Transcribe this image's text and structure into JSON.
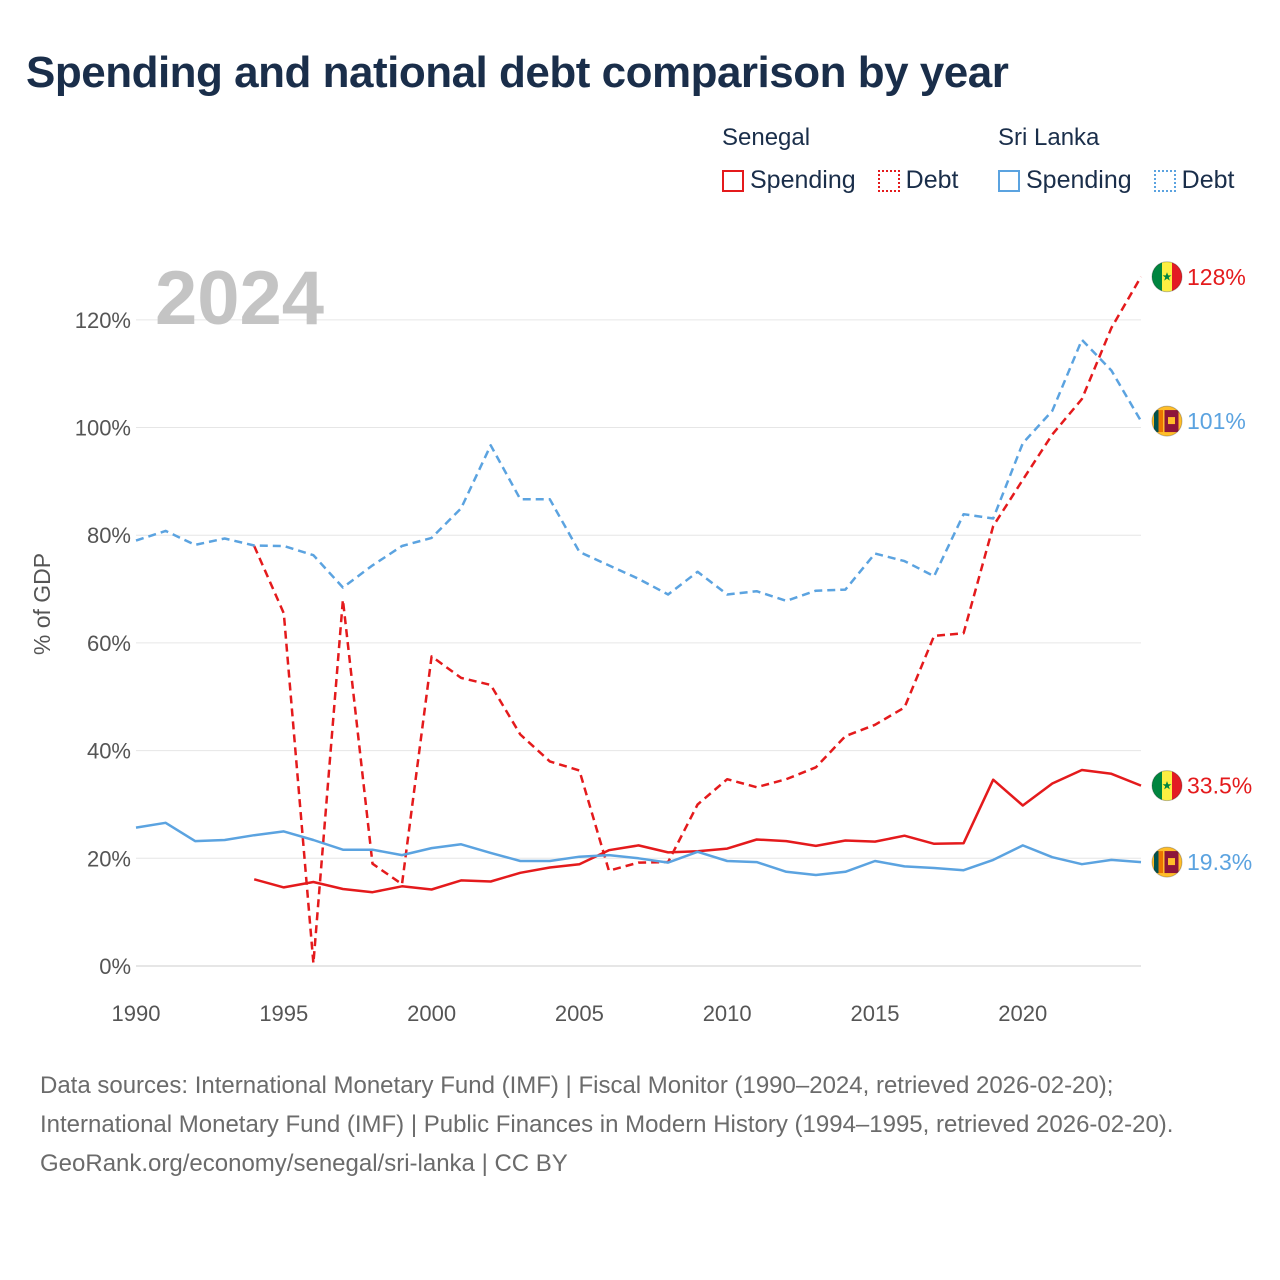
{
  "title": "Spending and national debt comparison by year",
  "legend": {
    "groups": [
      {
        "country": "Senegal",
        "color": "#e41a1c",
        "items": [
          {
            "label": "Spending",
            "style": "solid"
          },
          {
            "label": "Debt",
            "style": "dotted"
          }
        ]
      },
      {
        "country": "Sri Lanka",
        "color": "#5ba3e0",
        "items": [
          {
            "label": "Spending",
            "style": "solid"
          },
          {
            "label": "Debt",
            "style": "dotted"
          }
        ]
      }
    ]
  },
  "chart_data": {
    "type": "line",
    "year_label": "2024",
    "ylabel": "% of GDP",
    "xlim": [
      1990,
      2024
    ],
    "ylim": [
      0,
      130
    ],
    "x_ticks": [
      1990,
      1995,
      2000,
      2005,
      2010,
      2015,
      2020
    ],
    "x_tick_labels": [
      "1990",
      "1995",
      "2000",
      "2005",
      "2010",
      "2015",
      "2020"
    ],
    "y_ticks": [
      0,
      20,
      40,
      60,
      80,
      100,
      120
    ],
    "y_tick_labels": [
      "0%",
      "20%",
      "40%",
      "60%",
      "80%",
      "100%",
      "120%"
    ],
    "grid": true,
    "series": [
      {
        "name": "Senegal Spending",
        "country": "Senegal",
        "metric": "Spending",
        "color": "#e41a1c",
        "dash": "solid",
        "end_label": "33.5%",
        "flag": "senegal-flag",
        "x": [
          1994,
          1995,
          1996,
          1997,
          1998,
          1999,
          2000,
          2001,
          2002,
          2003,
          2004,
          2005,
          2006,
          2007,
          2008,
          2009,
          2010,
          2011,
          2012,
          2013,
          2014,
          2015,
          2016,
          2017,
          2018,
          2019,
          2020,
          2021,
          2022,
          2023,
          2024
        ],
        "values": [
          16.1,
          14.6,
          15.6,
          14.3,
          13.7,
          14.8,
          14.2,
          15.9,
          15.7,
          17.3,
          18.3,
          18.9,
          21.5,
          22.4,
          21.1,
          21.3,
          21.8,
          23.5,
          23.2,
          22.3,
          23.3,
          23.1,
          24.2,
          22.7,
          22.8,
          34.6,
          29.8,
          33.9,
          36.4,
          35.7,
          33.5
        ]
      },
      {
        "name": "Senegal Debt",
        "country": "Senegal",
        "metric": "Debt",
        "color": "#e41a1c",
        "dash": "dashed",
        "end_label": "128%",
        "flag": "senegal-flag",
        "x": [
          1994,
          1995,
          1996,
          1997,
          1998,
          1999,
          2000,
          2001,
          2002,
          2003,
          2004,
          2005,
          2006,
          2007,
          2008,
          2009,
          2010,
          2011,
          2012,
          2013,
          2014,
          2015,
          2016,
          2017,
          2018,
          2019,
          2020,
          2021,
          2022,
          2023,
          2024
        ],
        "values": [
          78.0,
          65.5,
          0.5,
          68.0,
          19.0,
          15.2,
          57.5,
          53.5,
          52.2,
          43.0,
          38.0,
          36.3,
          17.7,
          19.2,
          19.3,
          30.0,
          34.7,
          33.2,
          34.7,
          36.9,
          42.7,
          44.8,
          48.0,
          61.3,
          61.8,
          81.7,
          90.3,
          98.7,
          105.3,
          118.5,
          128.0
        ]
      },
      {
        "name": "Sri Lanka Spending",
        "country": "Sri Lanka",
        "metric": "Spending",
        "color": "#5ba3e0",
        "dash": "solid",
        "end_label": "19.3%",
        "flag": "sri-lanka-flag",
        "x": [
          1990,
          1991,
          1992,
          1993,
          1994,
          1995,
          1996,
          1997,
          1998,
          1999,
          2000,
          2001,
          2002,
          2003,
          2004,
          2005,
          2006,
          2007,
          2008,
          2009,
          2010,
          2011,
          2012,
          2013,
          2014,
          2015,
          2016,
          2017,
          2018,
          2019,
          2020,
          2021,
          2022,
          2023,
          2024
        ],
        "values": [
          25.7,
          26.6,
          23.2,
          23.4,
          24.3,
          25.0,
          23.4,
          21.6,
          21.6,
          20.6,
          21.9,
          22.6,
          21.0,
          19.5,
          19.5,
          20.3,
          20.6,
          20.0,
          19.2,
          21.2,
          19.5,
          19.3,
          17.5,
          16.9,
          17.5,
          19.5,
          18.5,
          18.2,
          17.8,
          19.7,
          22.4,
          20.2,
          18.9,
          19.7,
          19.3
        ]
      },
      {
        "name": "Sri Lanka Debt",
        "country": "Sri Lanka",
        "metric": "Debt",
        "color": "#5ba3e0",
        "dash": "dashed",
        "end_label": "101%",
        "flag": "sri-lanka-flag",
        "x": [
          1990,
          1991,
          1992,
          1993,
          1994,
          1995,
          1996,
          1997,
          1998,
          1999,
          2000,
          2001,
          2002,
          2003,
          2004,
          2005,
          2006,
          2007,
          2008,
          2009,
          2010,
          2011,
          2012,
          2013,
          2014,
          2015,
          2016,
          2017,
          2018,
          2019,
          2020,
          2021,
          2022,
          2023,
          2024
        ],
        "values": [
          79.0,
          80.8,
          78.2,
          79.4,
          78.1,
          78.0,
          76.3,
          70.3,
          74.4,
          78.0,
          79.5,
          85.0,
          96.7,
          86.7,
          86.7,
          76.9,
          74.4,
          71.9,
          69.0,
          73.2,
          69.0,
          69.6,
          67.8,
          69.7,
          69.9,
          76.6,
          75.2,
          72.4,
          83.9,
          83.1,
          97.1,
          103.1,
          116.3,
          110.6,
          101.2
        ]
      }
    ]
  },
  "footer": {
    "sources": "Data sources: International Monetary Fund (IMF) | Fiscal Monitor (1990–2024, retrieved 2026-02-20); International Monetary Fund (IMF) | Public Finances in Modern History (1994–1995, retrieved 2026-02-20).",
    "credit": "GeoRank.org/economy/senegal/sri-lanka | CC BY"
  }
}
